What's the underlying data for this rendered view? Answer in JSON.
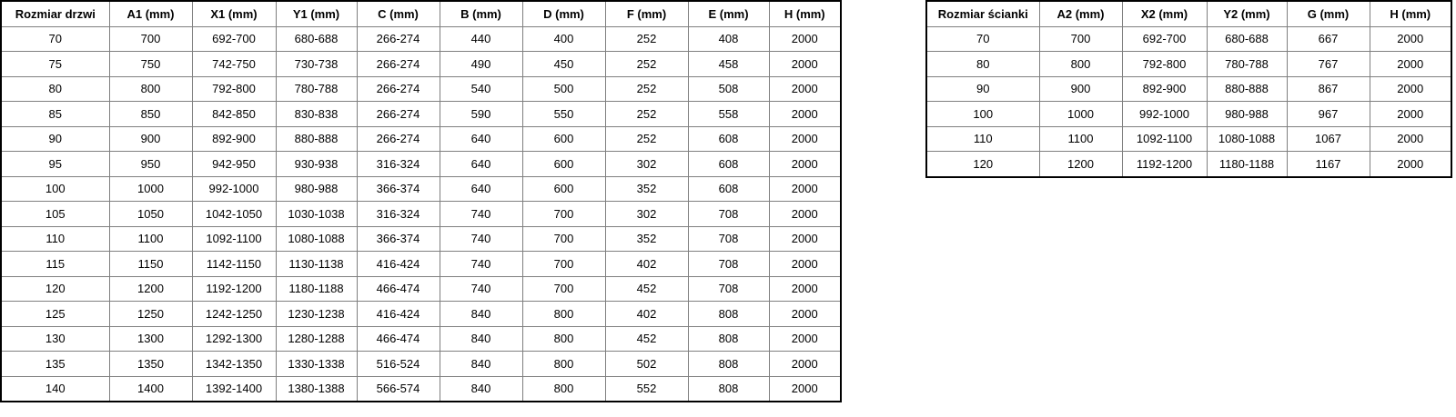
{
  "colors": {
    "background": "#ffffff",
    "border_outer": "#000000",
    "border_inner": "#7f7f7f",
    "text": "#000000"
  },
  "tables": [
    {
      "name": "door-size-table",
      "headers": [
        "Rozmiar drzwi",
        "A1 (mm)",
        "X1 (mm)",
        "Y1 (mm)",
        "C (mm)",
        "B (mm)",
        "D (mm)",
        "F (mm)",
        "E (mm)",
        "H (mm)"
      ],
      "rows": [
        [
          "70",
          "700",
          "692-700",
          "680-688",
          "266-274",
          "440",
          "400",
          "252",
          "408",
          "2000"
        ],
        [
          "75",
          "750",
          "742-750",
          "730-738",
          "266-274",
          "490",
          "450",
          "252",
          "458",
          "2000"
        ],
        [
          "80",
          "800",
          "792-800",
          "780-788",
          "266-274",
          "540",
          "500",
          "252",
          "508",
          "2000"
        ],
        [
          "85",
          "850",
          "842-850",
          "830-838",
          "266-274",
          "590",
          "550",
          "252",
          "558",
          "2000"
        ],
        [
          "90",
          "900",
          "892-900",
          "880-888",
          "266-274",
          "640",
          "600",
          "252",
          "608",
          "2000"
        ],
        [
          "95",
          "950",
          "942-950",
          "930-938",
          "316-324",
          "640",
          "600",
          "302",
          "608",
          "2000"
        ],
        [
          "100",
          "1000",
          "992-1000",
          "980-988",
          "366-374",
          "640",
          "600",
          "352",
          "608",
          "2000"
        ],
        [
          "105",
          "1050",
          "1042-1050",
          "1030-1038",
          "316-324",
          "740",
          "700",
          "302",
          "708",
          "2000"
        ],
        [
          "110",
          "1100",
          "1092-1100",
          "1080-1088",
          "366-374",
          "740",
          "700",
          "352",
          "708",
          "2000"
        ],
        [
          "115",
          "1150",
          "1142-1150",
          "1130-1138",
          "416-424",
          "740",
          "700",
          "402",
          "708",
          "2000"
        ],
        [
          "120",
          "1200",
          "1192-1200",
          "1180-1188",
          "466-474",
          "740",
          "700",
          "452",
          "708",
          "2000"
        ],
        [
          "125",
          "1250",
          "1242-1250",
          "1230-1238",
          "416-424",
          "840",
          "800",
          "402",
          "808",
          "2000"
        ],
        [
          "130",
          "1300",
          "1292-1300",
          "1280-1288",
          "466-474",
          "840",
          "800",
          "452",
          "808",
          "2000"
        ],
        [
          "135",
          "1350",
          "1342-1350",
          "1330-1338",
          "516-524",
          "840",
          "800",
          "502",
          "808",
          "2000"
        ],
        [
          "140",
          "1400",
          "1392-1400",
          "1380-1388",
          "566-574",
          "840",
          "800",
          "552",
          "808",
          "2000"
        ]
      ]
    },
    {
      "name": "wall-size-table",
      "headers": [
        "Rozmiar ścianki",
        "A2 (mm)",
        "X2 (mm)",
        "Y2 (mm)",
        "G (mm)",
        "H (mm)"
      ],
      "rows": [
        [
          "70",
          "700",
          "692-700",
          "680-688",
          "667",
          "2000"
        ],
        [
          "80",
          "800",
          "792-800",
          "780-788",
          "767",
          "2000"
        ],
        [
          "90",
          "900",
          "892-900",
          "880-888",
          "867",
          "2000"
        ],
        [
          "100",
          "1000",
          "992-1000",
          "980-988",
          "967",
          "2000"
        ],
        [
          "110",
          "1100",
          "1092-1100",
          "1080-1088",
          "1067",
          "2000"
        ],
        [
          "120",
          "1200",
          "1192-1200",
          "1180-1188",
          "1167",
          "2000"
        ]
      ]
    }
  ]
}
